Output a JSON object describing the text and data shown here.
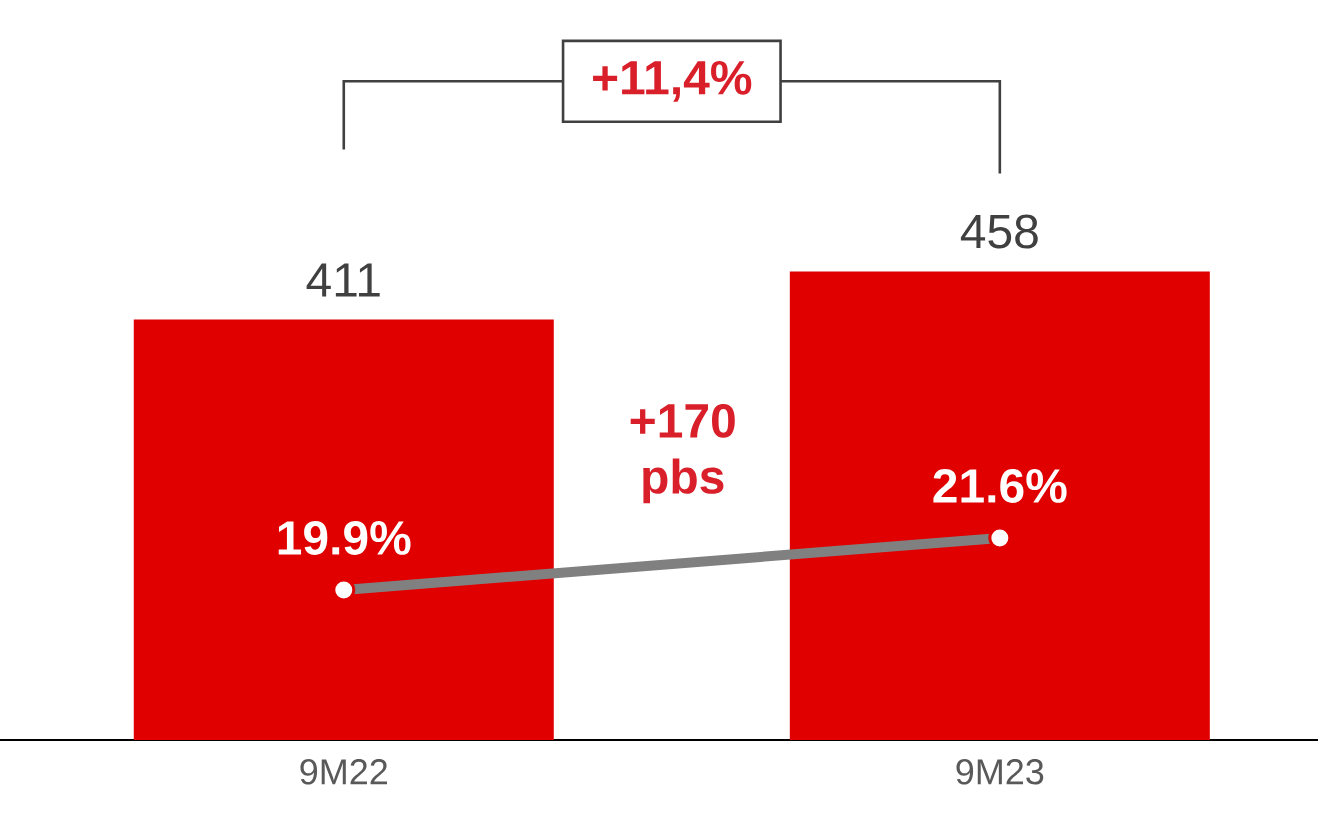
{
  "chart_data": {
    "type": "bar",
    "categories": [
      "9M22",
      "9M23"
    ],
    "series": [
      {
        "color": "#e00000",
        "values": [
          411,
          458
        ]
      },
      {
        "type": "line",
        "axis": "y2",
        "color": "#808080",
        "values": [
          19.9,
          21.6
        ],
        "value_labels": [
          "19.9%",
          "21.6%"
        ],
        "marker": "circle"
      }
    ],
    "data_labels": true,
    "tick_labels": "x",
    "annotations": [
      "+11,4%",
      "+170 pbs"
    ]
  }
}
